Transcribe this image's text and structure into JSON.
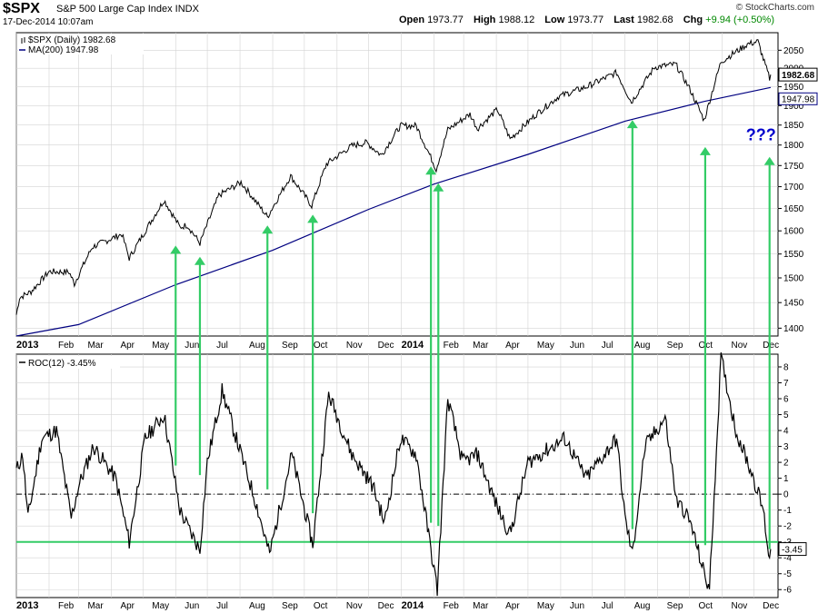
{
  "header": {
    "symbol": "$SPX",
    "description": "S&P 500 Large Cap Index INDX",
    "timestamp": "17-Dec-2014 10:07am",
    "open_label": "Open",
    "open": "1973.77",
    "high_label": "High",
    "high": "1988.12",
    "low_label": "Low",
    "low": "1973.77",
    "last_label": "Last",
    "last": "1982.68",
    "chg_label": "Chg",
    "chg": "+9.94 (+0.50%)",
    "brand": "© StockCharts.com"
  },
  "colors": {
    "price": "#000000",
    "ma": "#000080",
    "arrow": "#33cc66",
    "threshold": "#33cc66",
    "question": "#0000cc",
    "gridline": "#d3d3d3"
  },
  "chart_data": [
    {
      "type": "line",
      "y_scale": "log",
      "ylim": [
        1385,
        2100
      ],
      "yticks": [
        1400,
        1450,
        1500,
        1550,
        1600,
        1650,
        1700,
        1750,
        1800,
        1850,
        1900,
        1950,
        2000,
        2050
      ],
      "x_ticks": [
        "2013",
        "Feb",
        "Mar",
        "Apr",
        "May",
        "Jun",
        "Jul",
        "Aug",
        "Sep",
        "Oct",
        "Nov",
        "Dec",
        "2014",
        "Feb",
        "Mar",
        "Apr",
        "May",
        "Jun",
        "Jul",
        "Aug",
        "Sep",
        "Oct",
        "Nov",
        "Dec"
      ],
      "legend": [
        "$SPX (Daily) 1982.68",
        "MA(200) 1947.98"
      ],
      "last_labels": [
        "1982.68",
        "1947.98"
      ],
      "series": [
        {
          "name": "$SPX (Daily)",
          "x": [
            "2013-01-01",
            "2013-01-04",
            "2013-01-15",
            "2013-02-01",
            "2013-02-20",
            "2013-02-25",
            "2013-03-14",
            "2013-04-11",
            "2013-04-18",
            "2013-05-21",
            "2013-06-05",
            "2013-06-12",
            "2013-06-24",
            "2013-07-12",
            "2013-08-02",
            "2013-08-27",
            "2013-09-18",
            "2013-10-08",
            "2013-10-22",
            "2013-11-15",
            "2013-11-29",
            "2013-12-13",
            "2013-12-31",
            "2014-01-15",
            "2014-02-03",
            "2014-02-14",
            "2014-03-07",
            "2014-03-14",
            "2014-04-02",
            "2014-04-14",
            "2014-05-09",
            "2014-05-30",
            "2014-06-25",
            "2014-07-24",
            "2014-08-07",
            "2014-08-29",
            "2014-09-18",
            "2014-10-01",
            "2014-10-15",
            "2014-10-31",
            "2014-11-25",
            "2014-12-05",
            "2014-12-10",
            "2014-12-16",
            "2014-12-17"
          ],
          "y": [
            1426,
            1460,
            1472,
            1513,
            1512,
            1488,
            1565,
            1593,
            1541,
            1669,
            1608,
            1613,
            1573,
            1680,
            1710,
            1631,
            1725,
            1656,
            1754,
            1798,
            1806,
            1775,
            1848,
            1848,
            1741,
            1838,
            1878,
            1841,
            1890,
            1815,
            1878,
            1924,
            1949,
            1988,
            1909,
            2003,
            2011,
            1946,
            1862,
            2018,
            2067,
            2075,
            2026,
            1972,
            1982.68
          ]
        },
        {
          "name": "MA(200)",
          "x": [
            "2013-01-01",
            "2013-03-01",
            "2013-06-01",
            "2013-09-01",
            "2013-12-01",
            "2014-02-01",
            "2014-05-01",
            "2014-08-01",
            "2014-10-15",
            "2014-12-17"
          ],
          "y": [
            1385,
            1407,
            1486,
            1558,
            1648,
            1706,
            1777,
            1860,
            1911,
            1947.98
          ]
        }
      ],
      "arrows": [
        {
          "x": "2013-06-01",
          "y_from": 1400,
          "y_to": 1568
        },
        {
          "x": "2013-06-24",
          "y_from": 1400,
          "y_to": 1544
        },
        {
          "x": "2013-08-27",
          "y_from": 1400,
          "y_to": 1612
        },
        {
          "x": "2013-10-09",
          "y_from": 1400,
          "y_to": 1636
        },
        {
          "x": "2014-01-29",
          "y_from": 1400,
          "y_to": 1748
        },
        {
          "x": "2014-02-05",
          "y_from": 1400,
          "y_to": 1708
        },
        {
          "x": "2014-08-08",
          "y_from": 1400,
          "y_to": 1863
        },
        {
          "x": "2014-10-16",
          "y_from": 1400,
          "y_to": 1795
        },
        {
          "x": "2014-12-16",
          "y_from": 1400,
          "y_to": 1771
        }
      ],
      "annotation": {
        "text": "???",
        "x": "2014-12-04",
        "y": 1812
      }
    },
    {
      "type": "line",
      "ylim": [
        -6.5,
        8.8
      ],
      "yticks": [
        -6,
        -5,
        -4,
        -3,
        -2,
        -1,
        0,
        1,
        2,
        3,
        4,
        5,
        6,
        7,
        8
      ],
      "x_ticks": [
        "2013",
        "Feb",
        "Mar",
        "Apr",
        "May",
        "Jun",
        "Jul",
        "Aug",
        "Sep",
        "Oct",
        "Nov",
        "Dec",
        "2014",
        "Feb",
        "Mar",
        "Apr",
        "May",
        "Jun",
        "Jul",
        "Aug",
        "Sep",
        "Oct",
        "Nov",
        "Dec"
      ],
      "legend": [
        "ROC(12) -3.45%"
      ],
      "last_label": "-3.45",
      "zero_line": 0,
      "threshold": -3.0,
      "series": [
        {
          "name": "ROC(12)",
          "x": [
            "2013-01-01",
            "2013-01-07",
            "2013-01-12",
            "2013-01-25",
            "2013-02-08",
            "2013-02-22",
            "2013-03-01",
            "2013-03-15",
            "2013-04-05",
            "2013-04-18",
            "2013-05-03",
            "2013-05-21",
            "2013-06-05",
            "2013-06-12",
            "2013-06-24",
            "2013-07-01",
            "2013-07-15",
            "2013-08-02",
            "2013-08-16",
            "2013-08-29",
            "2013-09-19",
            "2013-10-09",
            "2013-10-24",
            "2013-11-15",
            "2013-12-05",
            "2013-12-16",
            "2013-12-31",
            "2014-01-15",
            "2014-01-29",
            "2014-02-04",
            "2014-02-14",
            "2014-02-28",
            "2014-03-14",
            "2014-04-03",
            "2014-04-14",
            "2014-05-01",
            "2014-06-05",
            "2014-06-25",
            "2014-07-24",
            "2014-08-01",
            "2014-08-08",
            "2014-08-20",
            "2014-09-08",
            "2014-09-19",
            "2014-09-26",
            "2014-10-03",
            "2014-10-15",
            "2014-10-20",
            "2014-10-31",
            "2014-11-14",
            "2014-12-01",
            "2014-12-10",
            "2014-12-16",
            "2014-12-17"
          ],
          "y": [
            1.5,
            2.5,
            -1.5,
            3.5,
            4.0,
            -1.5,
            0.5,
            3.0,
            1.0,
            -3.0,
            3.5,
            5.0,
            -1.0,
            -2.0,
            -3.5,
            2.0,
            6.5,
            2.5,
            -0.5,
            -3.8,
            2.5,
            -3.2,
            6.3,
            2.5,
            0.5,
            -1.8,
            3.5,
            2.5,
            -3.5,
            -6.0,
            6.0,
            2.0,
            2.5,
            -1.0,
            -2.5,
            2.0,
            3.5,
            1.0,
            3.5,
            -1.5,
            -3.8,
            3.0,
            4.8,
            -0.5,
            -1.0,
            -2.0,
            -5.0,
            -6.0,
            8.6,
            4.0,
            1.0,
            -1.0,
            -4.2,
            -3.45
          ]
        }
      ],
      "arrows": [
        {
          "x": "2013-06-01",
          "y_from": 1.8
        },
        {
          "x": "2013-06-24",
          "y_from": 1.2
        },
        {
          "x": "2013-08-27",
          "y_from": 0.3
        },
        {
          "x": "2013-10-09",
          "y_from": -1.2
        },
        {
          "x": "2014-01-29",
          "y_from": -1.8
        },
        {
          "x": "2014-02-05",
          "y_from": -2.0
        },
        {
          "x": "2014-08-08",
          "y_from": -2.2
        },
        {
          "x": "2014-10-16",
          "y_from": -3.2
        },
        {
          "x": "2014-12-16",
          "y_from": -3.45
        }
      ]
    }
  ]
}
